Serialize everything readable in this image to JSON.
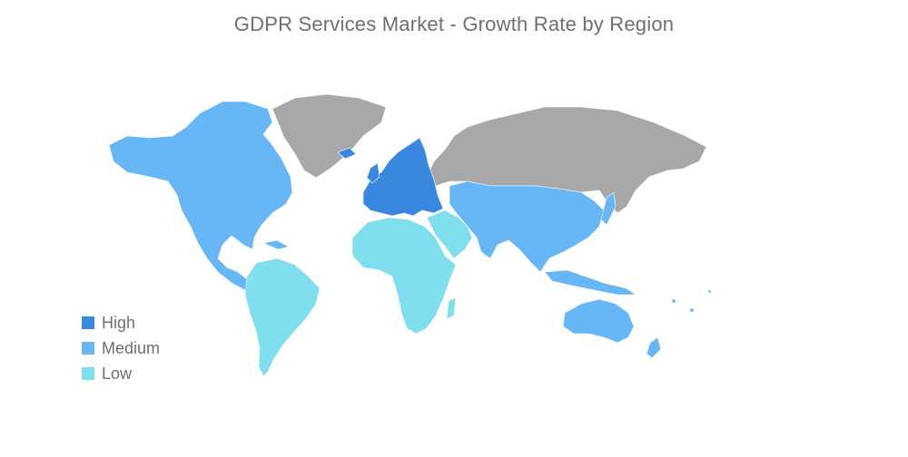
{
  "title": "GDPR  Services Market - Growth Rate by Region",
  "legend": {
    "items": [
      {
        "label": "High",
        "color": "#3a87e0"
      },
      {
        "label": "Medium",
        "color": "#67b6f6"
      },
      {
        "label": "Low",
        "color": "#7fdfee"
      }
    ]
  },
  "colors": {
    "no_data": "#a8a8a8",
    "high": "#3a87e0",
    "medium": "#67b6f6",
    "low": "#7fdfee"
  },
  "regions": {
    "north_america": "Medium",
    "south_america": "Low",
    "europe": "High",
    "africa": "Low",
    "middle_east": "Low",
    "asia_pacific": "Medium",
    "australia": "Medium",
    "russia": "No data",
    "greenland": "No data"
  }
}
